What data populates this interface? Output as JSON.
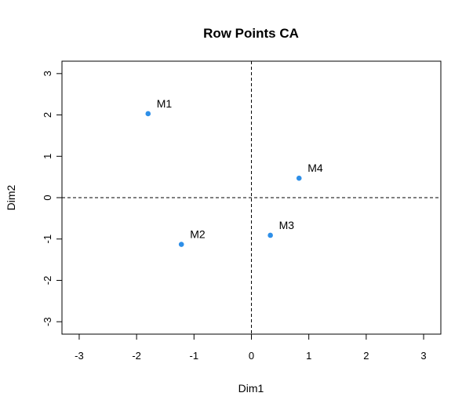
{
  "chart_data": {
    "type": "scatter",
    "title": "Row Points CA",
    "xlabel": "Dim1",
    "ylabel": "Dim2",
    "xlim": [
      -3.3,
      3.3
    ],
    "ylim": [
      -3.3,
      3.3
    ],
    "xticks": [
      -3,
      -2,
      -1,
      0,
      1,
      2,
      3
    ],
    "yticks": [
      -3,
      -2,
      -1,
      0,
      1,
      2,
      3
    ],
    "xtick_labels": [
      "-3",
      "-2",
      "-1",
      "0",
      "1",
      "2",
      "3"
    ],
    "ytick_labels": [
      "-3",
      "-2",
      "-1",
      "0",
      "1",
      "2",
      "3"
    ],
    "reference_lines": {
      "x": 0,
      "y": 0,
      "style": "dashed"
    },
    "grid": false,
    "point_color": "#2E8FE8",
    "points": [
      {
        "label": "M1",
        "x": -1.8,
        "y": 2.03
      },
      {
        "label": "M2",
        "x": -1.22,
        "y": -1.13
      },
      {
        "label": "M3",
        "x": 0.33,
        "y": -0.91
      },
      {
        "label": "M4",
        "x": 0.83,
        "y": 0.47
      }
    ]
  }
}
